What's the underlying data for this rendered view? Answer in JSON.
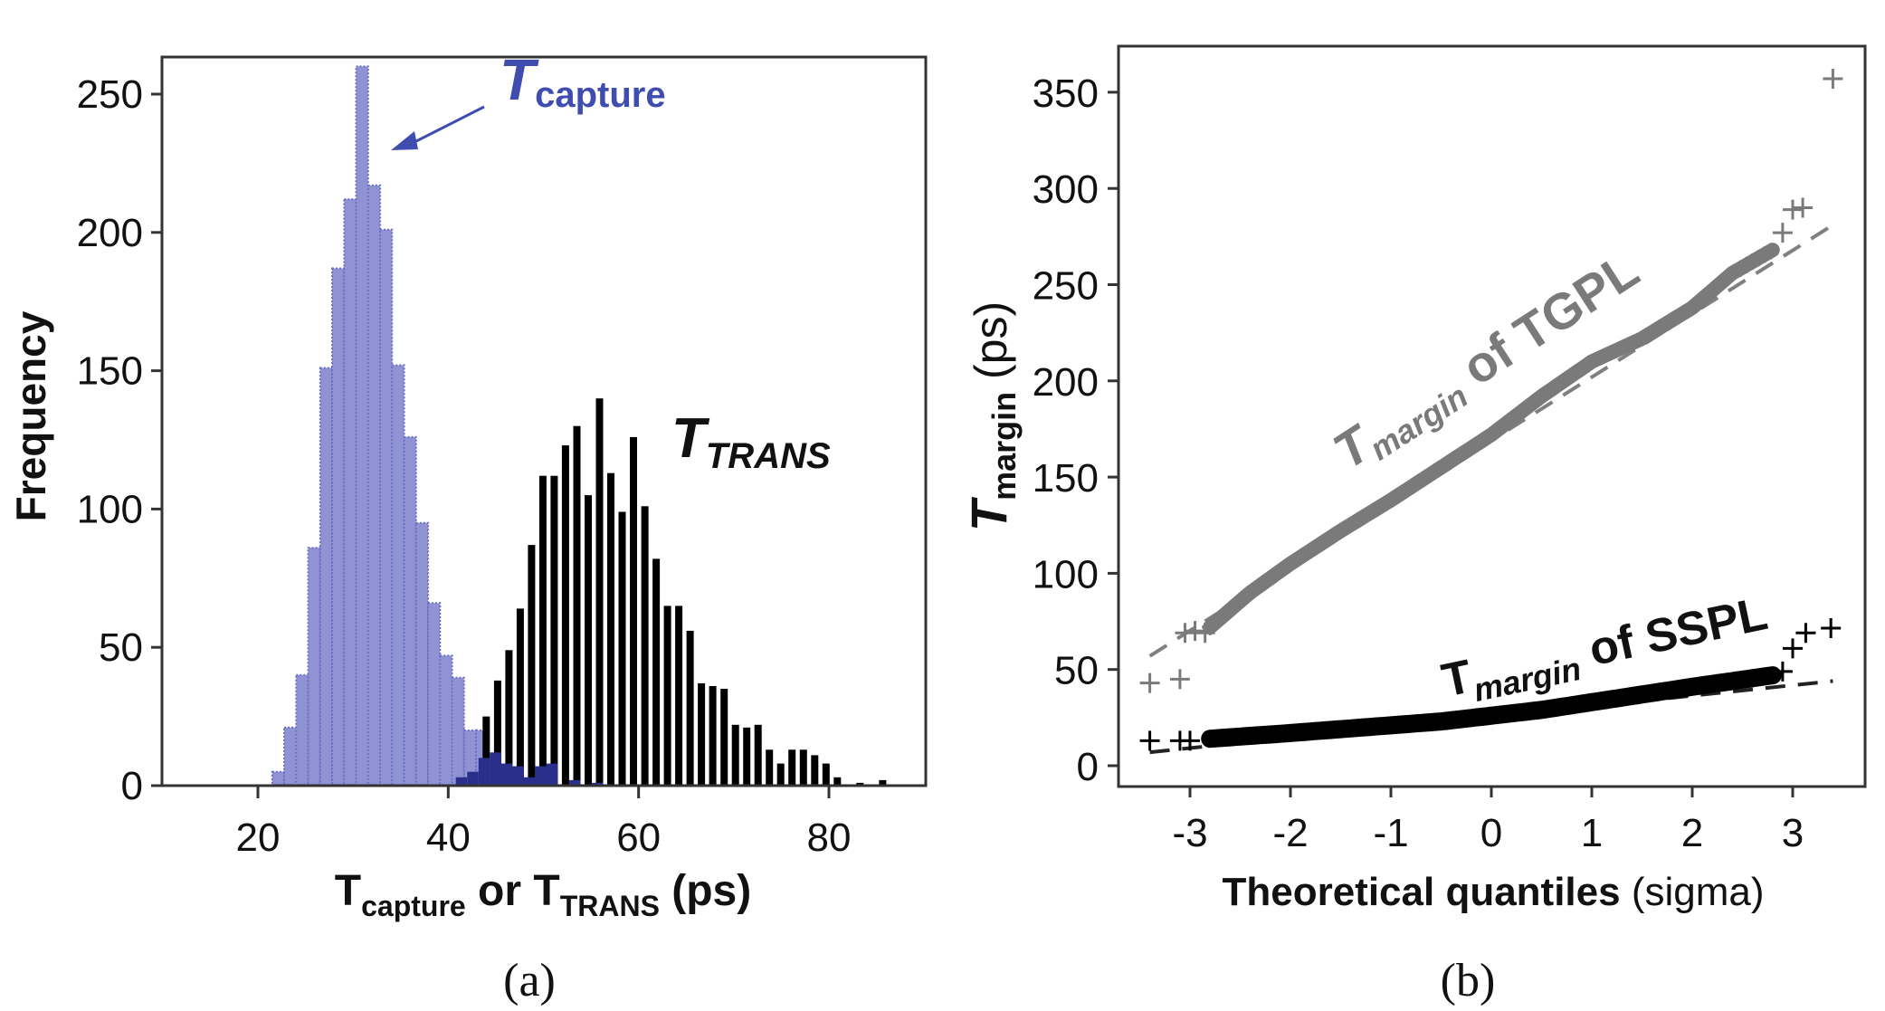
{
  "chart_data": [
    {
      "panel": "a",
      "type": "bar",
      "subtype": "histogram",
      "caption": "(a)",
      "title": "",
      "ylabel": "Frequency",
      "xlabel": {
        "main": "T",
        "sub1": "capture",
        "mid": " or T",
        "sub2": "TRANS",
        "end": " (ps)"
      },
      "xlim": [
        11,
        90
      ],
      "ylim": [
        0,
        270
      ],
      "xticks": [
        20,
        40,
        60,
        80
      ],
      "yticks": [
        0,
        50,
        100,
        150,
        200,
        250
      ],
      "grid": false,
      "series": [
        {
          "name": "Tcapture",
          "label_main": "T",
          "label_sub": "capture",
          "color": "#8f93d4",
          "edge_color": "#6c70c0",
          "bin_start": 21.5,
          "bin_width": 1.26,
          "values": [
            5,
            21,
            40,
            86,
            151,
            187,
            212,
            260,
            217,
            201,
            152,
            126,
            95,
            66,
            47,
            39,
            20,
            20
          ]
        },
        {
          "name": "TTRANS",
          "label_main": "T",
          "label_sub": "TRANS",
          "color": "#000000",
          "bin_start": 43.4,
          "bin_width": 1.19,
          "values": [
            25,
            38,
            49,
            64,
            87,
            112,
            112,
            123,
            130,
            105,
            140,
            113,
            99,
            126,
            101,
            82,
            65,
            65,
            56,
            37,
            36,
            35,
            22,
            21,
            22,
            13,
            8,
            13,
            13,
            11,
            8,
            3,
            0,
            1,
            0,
            2
          ]
        },
        {
          "name": "overlap",
          "color": "#2b2f8c",
          "bin_start": 40.8,
          "bin_width": 1.19,
          "values": [
            3,
            5,
            10,
            12,
            8,
            7,
            3,
            7,
            8,
            0,
            2,
            0,
            1
          ]
        }
      ],
      "annotations": [
        {
          "text_main": "T",
          "text_sub": "capture",
          "color": "#3f4db0",
          "arrow_to": [
            31.5,
            232
          ]
        },
        {
          "text_main": "T",
          "text_sub": "TRANS",
          "color": "#111111"
        }
      ]
    },
    {
      "panel": "b",
      "type": "scatter",
      "subtype": "qq-plot",
      "caption": "(b)",
      "title": "",
      "ylabel": {
        "main": "T",
        "sub": "margin",
        "end": " (ps)"
      },
      "xlabel": {
        "bold": "Theoretical quantiles",
        "normal": " (sigma)"
      },
      "xlim": [
        -3.75,
        3.7
      ],
      "ylim": [
        -13,
        374
      ],
      "xticks": [
        -3,
        -2,
        -1,
        0,
        1,
        2,
        3
      ],
      "yticks": [
        0,
        50,
        100,
        150,
        200,
        250,
        300,
        350
      ],
      "grid": false,
      "series": [
        {
          "name": "Tmargin of TGPL",
          "label_main": "T",
          "label_sub": "margin",
          "label_end": " of TGPL",
          "color": "#7a7a7a",
          "quantile_curve": [
            [
              -2.8,
              72
            ],
            [
              -2.4,
              90
            ],
            [
              -2.0,
              105
            ],
            [
              -1.5,
              122
            ],
            [
              -1.0,
              138
            ],
            [
              -0.5,
              155
            ],
            [
              0.0,
              172
            ],
            [
              0.5,
              192
            ],
            [
              1.0,
              210
            ],
            [
              1.5,
              222
            ],
            [
              2.0,
              238
            ],
            [
              2.4,
              256
            ],
            [
              2.8,
              268
            ]
          ],
          "outliers": [
            [
              -3.4,
              43
            ],
            [
              -3.1,
              45
            ],
            [
              -3.05,
              69
            ],
            [
              -2.95,
              70
            ],
            [
              -2.85,
              69
            ],
            [
              2.9,
              277
            ],
            [
              3.0,
              289
            ],
            [
              3.1,
              290
            ],
            [
              3.4,
              357
            ]
          ],
          "fit_line": [
            [
              -3.4,
              57
            ],
            [
              3.4,
              281
            ]
          ]
        },
        {
          "name": "Tmargin of SSPL",
          "label_main": "T",
          "label_sub": "margin",
          "label_end": " of SSPL",
          "color": "#000000",
          "quantile_curve": [
            [
              -2.8,
              14
            ],
            [
              -2.0,
              17
            ],
            [
              -1.5,
              19
            ],
            [
              -1.0,
              21
            ],
            [
              -0.5,
              23
            ],
            [
              0.0,
              26
            ],
            [
              0.5,
              29
            ],
            [
              1.0,
              33
            ],
            [
              1.5,
              37
            ],
            [
              2.0,
              41
            ],
            [
              2.4,
              44
            ],
            [
              2.8,
              47
            ]
          ],
          "outliers": [
            [
              -3.4,
              13
            ],
            [
              -3.1,
              13
            ],
            [
              -3.0,
              13
            ],
            [
              2.9,
              49
            ],
            [
              3.0,
              61
            ],
            [
              3.13,
              69
            ],
            [
              3.38,
              71.5
            ]
          ],
          "fit_line": [
            [
              -3.4,
              7
            ],
            [
              3.4,
              44
            ]
          ]
        }
      ]
    }
  ]
}
